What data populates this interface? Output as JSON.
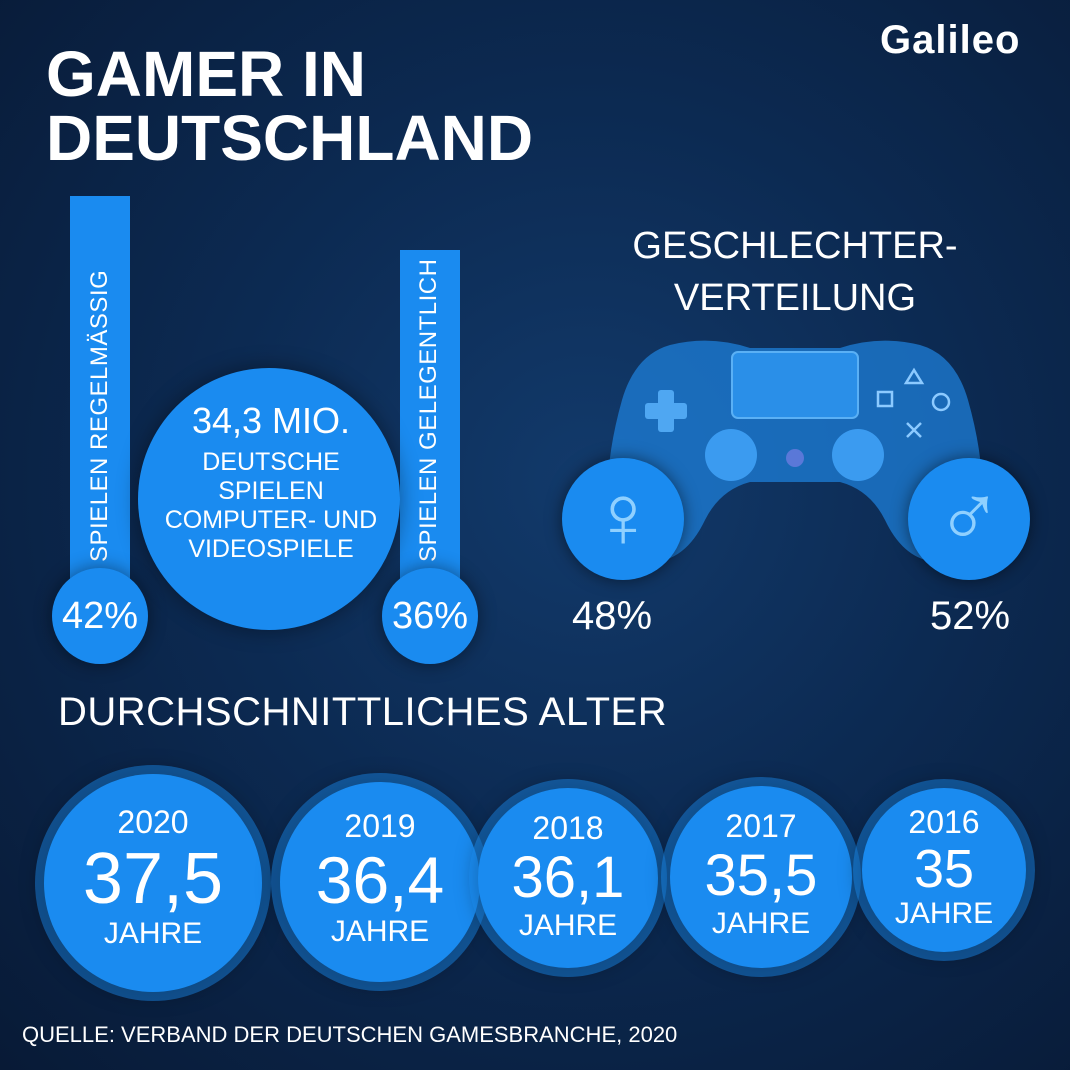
{
  "brand": {
    "logo_text": "Galileo"
  },
  "title": {
    "line1": "GAMER IN",
    "line2": "DEUTSCHLAND"
  },
  "chart_data": [
    {
      "type": "bar",
      "categories": [
        "SPIELEN REGELMÄSSIG",
        "SPIELEN GELEGENTLICH"
      ],
      "values": [
        42,
        36
      ],
      "value_labels": [
        "42%",
        "36%"
      ],
      "total": {
        "label_big": "34,3 MIO.",
        "label_lines": [
          "DEUTSCHE",
          "SPIELEN",
          "COMPUTER- UND",
          "VIDEOSPIELE"
        ]
      }
    },
    {
      "type": "pie",
      "title": "GESCHLECHTER-VERTEILUNG",
      "title_lines": [
        "GESCHLECHTER-",
        "VERTEILUNG"
      ],
      "slices": [
        {
          "symbol": "♀",
          "value": 48,
          "label": "48%"
        },
        {
          "symbol": "♂",
          "value": 52,
          "label": "52%"
        }
      ]
    },
    {
      "type": "bar",
      "title": "DURCHSCHNITTLICHES ALTER",
      "categories": [
        "2020",
        "2019",
        "2018",
        "2017",
        "2016"
      ],
      "values": [
        37.5,
        36.4,
        36.1,
        35.5,
        35
      ],
      "value_labels": [
        "37,5",
        "36,4",
        "36,1",
        "35,5",
        "35"
      ],
      "unit": "JAHRE"
    }
  ],
  "source": "QUELLE: VERBAND DER DEUTSCHEN GAMESBRANCHE, 2020",
  "colors": {
    "accent": "#1a8bf0",
    "background": "#0c2a52",
    "text": "#ffffff"
  },
  "icons": {
    "controller": "gamepad-icon",
    "female": "female-symbol-icon",
    "male": "male-symbol-icon"
  }
}
